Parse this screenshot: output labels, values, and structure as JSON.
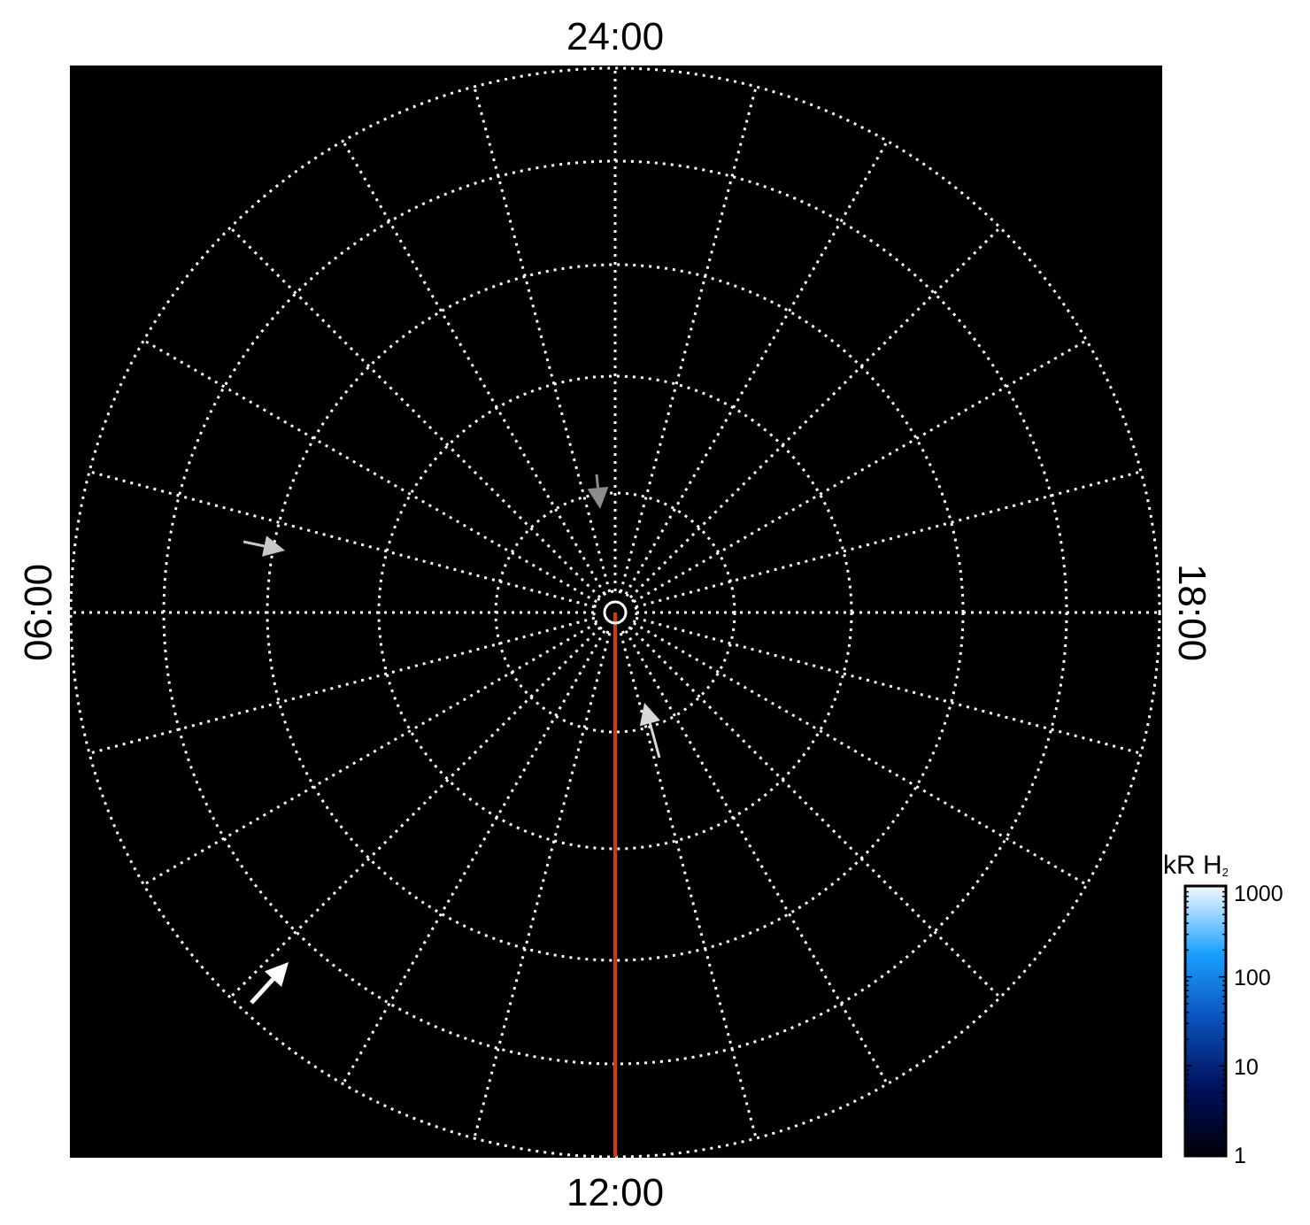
{
  "chart_data": {
    "type": "polar",
    "title": "",
    "local_time_labels": {
      "top": "24:00",
      "bottom": "12:00",
      "left": "06:00",
      "right": "18:00"
    },
    "grid": true,
    "grid_style": "dotted",
    "meridian_spacing_hours": 1,
    "background_color": "#000000",
    "grid_color": "#ffffff",
    "highlight_line": {
      "local_time": "12:00",
      "color": "#d23a08"
    },
    "arrows": [
      {
        "color": "#8c8c8c",
        "direction": "down"
      },
      {
        "color": "#c8c8c8",
        "direction": "right"
      },
      {
        "color": "#d8d8d8",
        "direction": "up"
      },
      {
        "color": "#ffffff",
        "direction": "up-right"
      }
    ],
    "colorbar": {
      "label": "kR H",
      "label_subscript": "2",
      "scale": "log",
      "range": [
        1,
        1000
      ],
      "ticks": [
        "1000",
        "100",
        "10",
        "1"
      ],
      "colors": [
        "#000008",
        "#00105a",
        "#0a4fb8",
        "#1aa0ff",
        "#f4fbff"
      ],
      "placement": "bottom-right"
    }
  }
}
